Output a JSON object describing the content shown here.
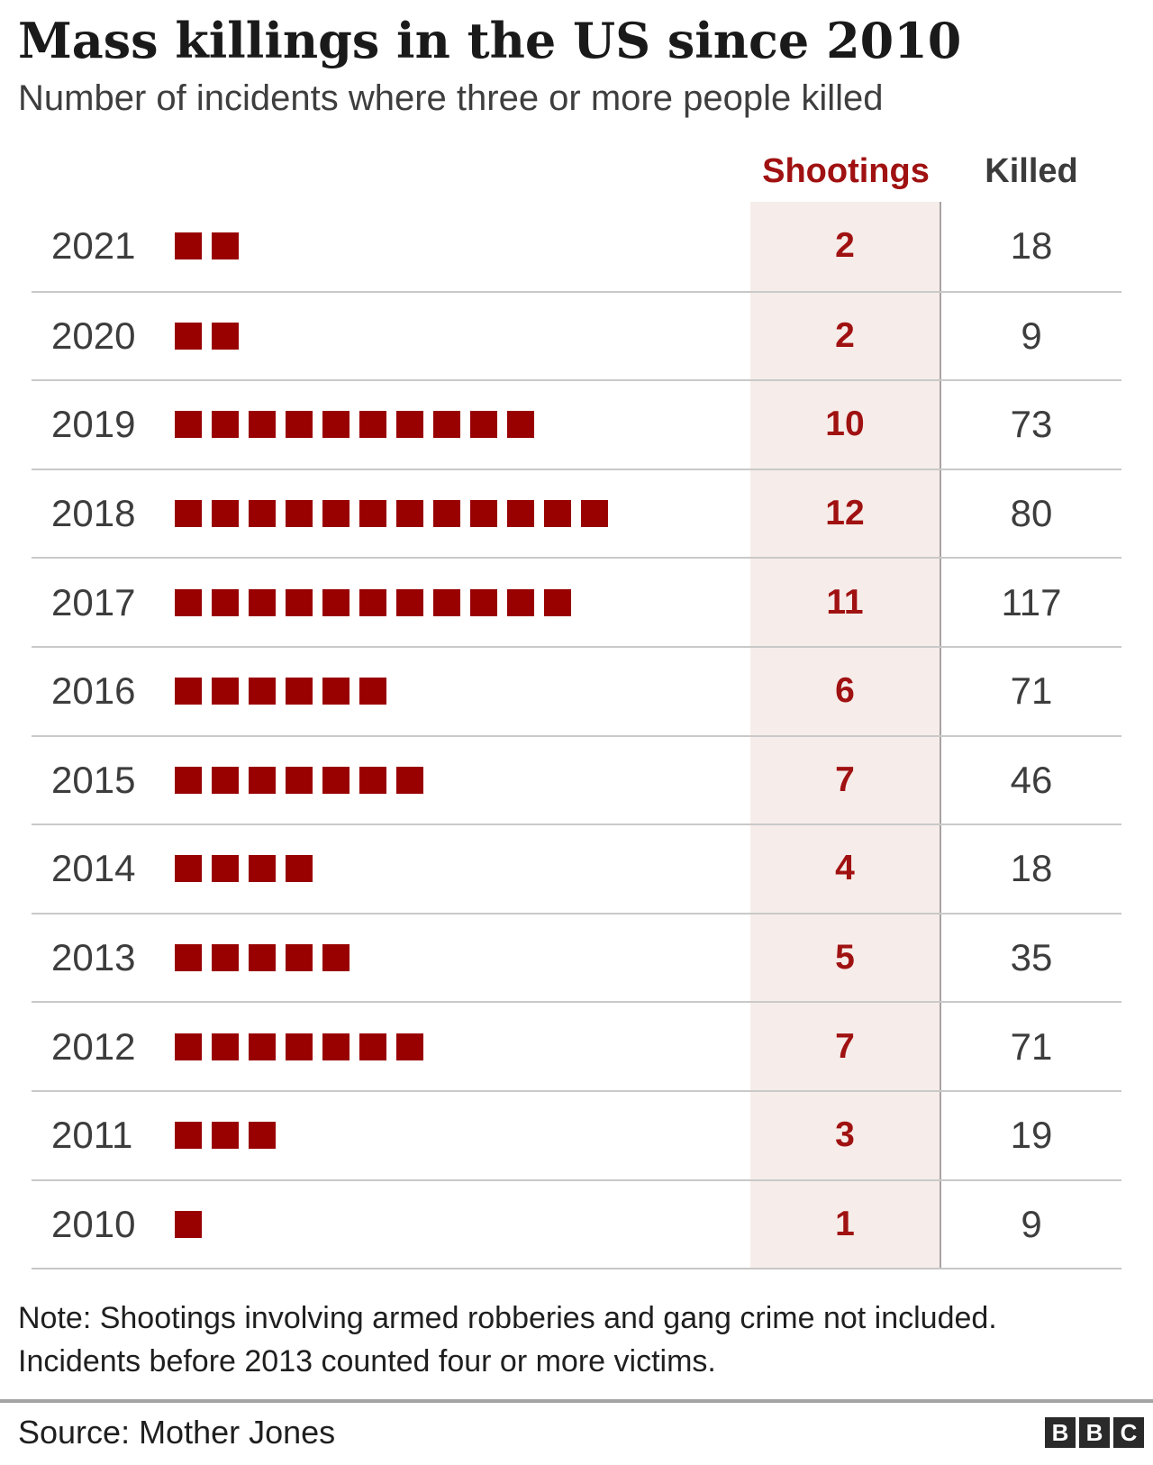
{
  "header": {
    "title": "Mass killings in the US since 2010",
    "subtitle": "Number of incidents where three or more people killed"
  },
  "table": {
    "shootings_header": "Shootings",
    "killed_header": "Killed"
  },
  "chart_data": {
    "type": "bar",
    "title": "Mass killings in the US since 2010",
    "subtitle": "Number of incidents where three or more people killed",
    "categories": [
      "2021",
      "2020",
      "2019",
      "2018",
      "2017",
      "2016",
      "2015",
      "2014",
      "2013",
      "2012",
      "2011",
      "2010"
    ],
    "series": [
      {
        "name": "Shootings",
        "values": [
          2,
          2,
          10,
          12,
          11,
          6,
          7,
          4,
          5,
          7,
          3,
          1
        ]
      },
      {
        "name": "Killed",
        "values": [
          18,
          9,
          73,
          80,
          117,
          71,
          46,
          18,
          35,
          71,
          19,
          9
        ]
      }
    ],
    "unit": "1 square = 1 shooting",
    "legend_position": "column-headers",
    "grid": "horizontal row separators"
  },
  "note": {
    "line1": "Note: Shootings involving armed robberies and gang crime not included.",
    "line2": "Incidents before 2013 counted four or more victims."
  },
  "source": {
    "label": "Source: Mother Jones"
  },
  "logo": {
    "letters": [
      "B",
      "B",
      "C"
    ]
  },
  "colors": {
    "square_red": "#990000",
    "red_text": "#a01111",
    "column_tint": "#f6ece9",
    "dark_text": "#3d3d3d",
    "row_line": "#c9c9c9"
  }
}
